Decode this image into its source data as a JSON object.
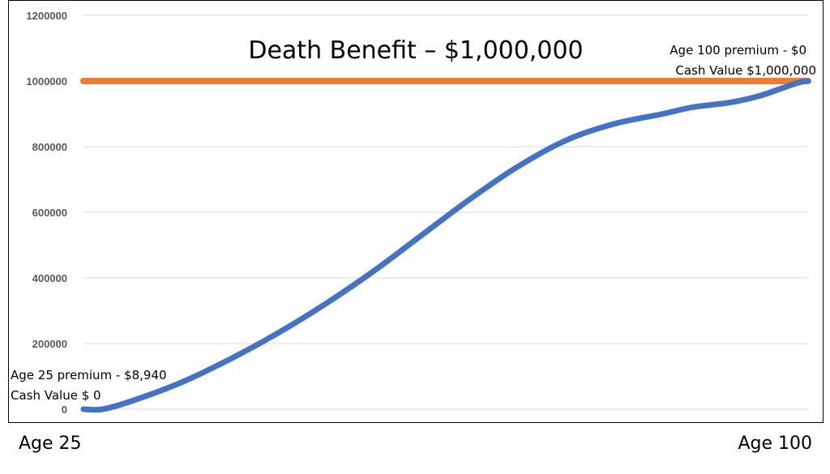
{
  "chart_data": {
    "type": "line",
    "title": "Death Benefit – $1,000,000",
    "xlabel": "",
    "ylabel": "",
    "ylim": [
      0,
      1200000
    ],
    "yticks": [
      0,
      200000,
      400000,
      600000,
      800000,
      1000000,
      1200000
    ],
    "ytick_labels": [
      "0",
      "200000",
      "400000",
      "600000",
      "800000",
      "1000000",
      "1200000"
    ],
    "xlim": [
      25,
      100
    ],
    "x_endpoint_labels": [
      "Age 25",
      "Age 100"
    ],
    "grid": true,
    "series": [
      {
        "color": "#ED7D31",
        "x": [
          25,
          100
        ],
        "values": [
          1000000,
          1000000
        ]
      },
      {
        "color": "#4472C4",
        "x": [
          25,
          27,
          30,
          35,
          40,
          45,
          50,
          55,
          60,
          65,
          70,
          75,
          80,
          85,
          88,
          92,
          95,
          97,
          99,
          100
        ],
        "values": [
          0,
          0,
          25000,
          80000,
          150000,
          230000,
          320000,
          420000,
          530000,
          640000,
          740000,
          820000,
          870000,
          900000,
          920000,
          935000,
          955000,
          975000,
          995000,
          1000000
        ]
      }
    ],
    "annotations": {
      "start_premium": "Age 25 premium - $8,940",
      "start_cash": "Cash Value $ 0",
      "end_premium": "Age 100 premium - $0",
      "end_cash": "Cash Value $1,000,000"
    }
  }
}
